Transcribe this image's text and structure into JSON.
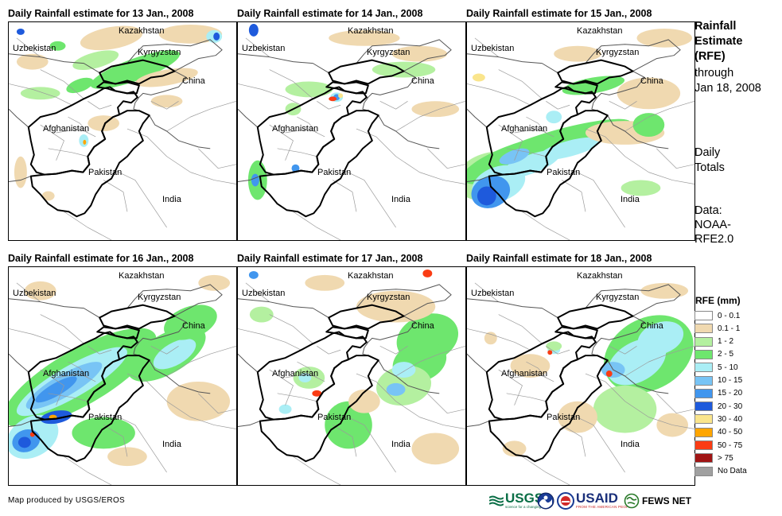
{
  "panels": [
    {
      "title": "Daily Rainfall estimate for 13 Jan., 2008"
    },
    {
      "title": "Daily Rainfall estimate for 14 Jan., 2008"
    },
    {
      "title": "Daily Rainfall estimate for 15 Jan., 2008"
    },
    {
      "title": "Daily Rainfall estimate for 16 Jan., 2008"
    },
    {
      "title": "Daily Rainfall estimate for 17 Jan., 2008"
    },
    {
      "title": "Daily Rainfall estimate for 18 Jan., 2008"
    }
  ],
  "places": {
    "kazakhstan": "Kazakhstan",
    "uzbekistan": "Uzbekistan",
    "kyrgyzstan": "Kyrgyzstan",
    "china": "China",
    "afghanistan": "Afghanistan",
    "pakistan": "Pakistan",
    "india": "India"
  },
  "side": {
    "title_line1": "Rainfall",
    "title_line2": "Estimate",
    "title_line3": "(RFE)",
    "through": "through",
    "date": "Jan 18, 2008",
    "daily1": "Daily",
    "daily2": "Totals",
    "data1": "Data:",
    "data2": "NOAA-",
    "data3": "RFE2.0"
  },
  "legend": {
    "title": "RFE (mm)",
    "items": [
      {
        "label": "0 - 0.1",
        "color": "#ffffff"
      },
      {
        "label": "0.1 - 1",
        "color": "#f0d9b0"
      },
      {
        "label": "1 - 2",
        "color": "#b4f0a0"
      },
      {
        "label": "2 - 5",
        "color": "#6ee66e"
      },
      {
        "label": "5 - 10",
        "color": "#aaeef5"
      },
      {
        "label": "10 - 15",
        "color": "#78c4f5"
      },
      {
        "label": "15 - 20",
        "color": "#4196ee"
      },
      {
        "label": "20 - 30",
        "color": "#1e5adc"
      },
      {
        "label": "30 - 40",
        "color": "#fae58c"
      },
      {
        "label": "40 - 50",
        "color": "#ffa500"
      },
      {
        "label": "50 - 75",
        "color": "#fa3c14"
      },
      {
        "label": "> 75",
        "color": "#a01414"
      },
      {
        "label": "No Data",
        "color": "#a0a0a0"
      }
    ]
  },
  "footer": {
    "credit": "Map produced by USGS/EROS",
    "usgs": "USGS",
    "usgs_tag": "science for a changing world",
    "usaid": "USAID",
    "usaid_tag": "FROM THE AMERICAN PEOPLE",
    "fewsnet": "FEWS NET"
  }
}
